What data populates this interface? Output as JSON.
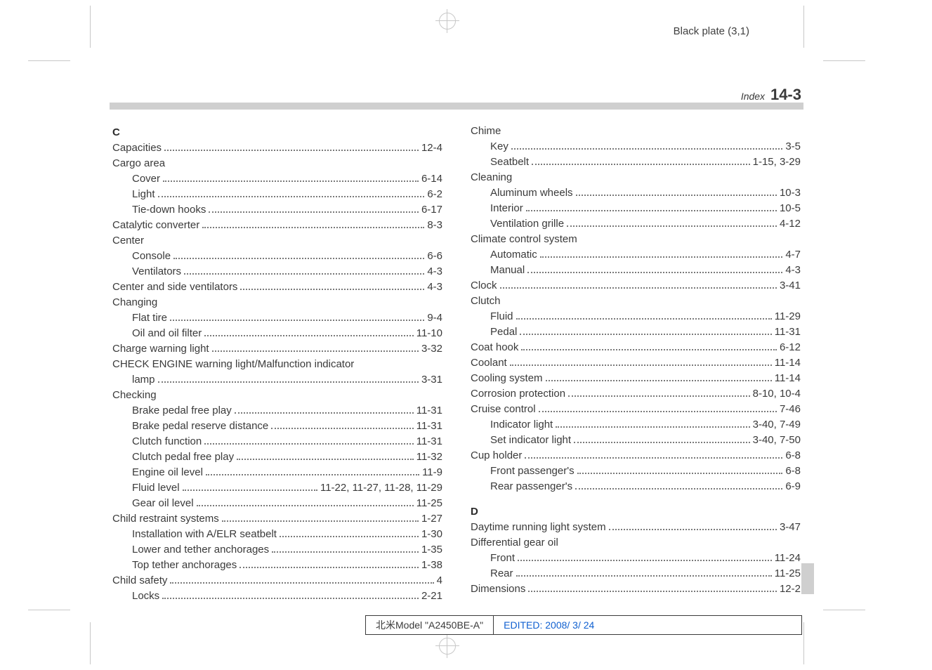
{
  "header": {
    "black_plate": "Black plate (3,1)",
    "index_word": "Index",
    "index_number": "14-3"
  },
  "footer": {
    "model": "北米Model \"A2450BE-A\"",
    "edited": "EDITED: 2008/ 3/ 24"
  },
  "left": [
    {
      "type": "head",
      "text": "C"
    },
    {
      "type": "entry",
      "indent": 0,
      "label": "Capacities",
      "page": "12-4"
    },
    {
      "type": "group",
      "indent": 0,
      "label": "Cargo area"
    },
    {
      "type": "entry",
      "indent": 1,
      "label": "Cover",
      "page": "6-14"
    },
    {
      "type": "entry",
      "indent": 1,
      "label": "Light",
      "page": "6-2"
    },
    {
      "type": "entry",
      "indent": 1,
      "label": "Tie-down hooks",
      "page": "6-17"
    },
    {
      "type": "entry",
      "indent": 0,
      "label": "Catalytic converter",
      "page": "8-3"
    },
    {
      "type": "group",
      "indent": 0,
      "label": "Center"
    },
    {
      "type": "entry",
      "indent": 1,
      "label": "Console",
      "page": "6-6"
    },
    {
      "type": "entry",
      "indent": 1,
      "label": "Ventilators",
      "page": "4-3"
    },
    {
      "type": "entry",
      "indent": 0,
      "label": "Center and side ventilators",
      "page": "4-3"
    },
    {
      "type": "group",
      "indent": 0,
      "label": "Changing"
    },
    {
      "type": "entry",
      "indent": 1,
      "label": "Flat tire",
      "page": "9-4"
    },
    {
      "type": "entry",
      "indent": 1,
      "label": "Oil and oil filter",
      "page": "11-10"
    },
    {
      "type": "entry",
      "indent": 0,
      "label": "Charge warning light",
      "page": "3-32"
    },
    {
      "type": "group",
      "indent": 0,
      "label": "CHECK ENGINE warning light/Malfunction indicator"
    },
    {
      "type": "entry",
      "indent": 1,
      "label": "lamp",
      "page": "3-31"
    },
    {
      "type": "group",
      "indent": 0,
      "label": "Checking"
    },
    {
      "type": "entry",
      "indent": 1,
      "label": "Brake pedal free play",
      "page": "11-31"
    },
    {
      "type": "entry",
      "indent": 1,
      "label": "Brake pedal reserve distance",
      "page": "11-31"
    },
    {
      "type": "entry",
      "indent": 1,
      "label": "Clutch function",
      "page": "11-31"
    },
    {
      "type": "entry",
      "indent": 1,
      "label": "Clutch pedal free play",
      "page": "11-32"
    },
    {
      "type": "entry",
      "indent": 1,
      "label": "Engine oil level",
      "page": "11-9"
    },
    {
      "type": "entry",
      "indent": 1,
      "label": "Fluid level",
      "page": "11-22, 11-27, 11-28, 11-29"
    },
    {
      "type": "entry",
      "indent": 1,
      "label": "Gear oil level",
      "page": "11-25"
    },
    {
      "type": "entry",
      "indent": 0,
      "label": "Child restraint systems",
      "page": "1-27"
    },
    {
      "type": "entry",
      "indent": 1,
      "label": "Installation with A/ELR seatbelt",
      "page": "1-30"
    },
    {
      "type": "entry",
      "indent": 1,
      "label": "Lower and tether anchorages",
      "page": "1-35"
    },
    {
      "type": "entry",
      "indent": 1,
      "label": "Top tether anchorages",
      "page": "1-38"
    },
    {
      "type": "entry",
      "indent": 0,
      "label": "Child safety",
      "page": "4"
    },
    {
      "type": "entry",
      "indent": 1,
      "label": "Locks",
      "page": "2-21"
    }
  ],
  "right": [
    {
      "type": "group",
      "indent": 0,
      "label": "Chime"
    },
    {
      "type": "entry",
      "indent": 1,
      "label": "Key",
      "page": "3-5"
    },
    {
      "type": "entry",
      "indent": 1,
      "label": "Seatbelt",
      "page": "1-15, 3-29"
    },
    {
      "type": "group",
      "indent": 0,
      "label": "Cleaning"
    },
    {
      "type": "entry",
      "indent": 1,
      "label": "Aluminum wheels",
      "page": "10-3"
    },
    {
      "type": "entry",
      "indent": 1,
      "label": "Interior",
      "page": "10-5"
    },
    {
      "type": "entry",
      "indent": 1,
      "label": "Ventilation grille",
      "page": "4-12"
    },
    {
      "type": "group",
      "indent": 0,
      "label": "Climate control system"
    },
    {
      "type": "entry",
      "indent": 1,
      "label": "Automatic",
      "page": "4-7"
    },
    {
      "type": "entry",
      "indent": 1,
      "label": "Manual",
      "page": "4-3"
    },
    {
      "type": "entry",
      "indent": 0,
      "label": "Clock",
      "page": "3-41"
    },
    {
      "type": "group",
      "indent": 0,
      "label": "Clutch"
    },
    {
      "type": "entry",
      "indent": 1,
      "label": "Fluid",
      "page": "11-29"
    },
    {
      "type": "entry",
      "indent": 1,
      "label": "Pedal",
      "page": "11-31"
    },
    {
      "type": "entry",
      "indent": 0,
      "label": "Coat hook",
      "page": "6-12"
    },
    {
      "type": "entry",
      "indent": 0,
      "label": "Coolant",
      "page": "11-14"
    },
    {
      "type": "entry",
      "indent": 0,
      "label": "Cooling system",
      "page": "11-14"
    },
    {
      "type": "entry",
      "indent": 0,
      "label": "Corrosion protection",
      "page": "8-10, 10-4"
    },
    {
      "type": "entry",
      "indent": 0,
      "label": "Cruise control",
      "page": "7-46"
    },
    {
      "type": "entry",
      "indent": 1,
      "label": "Indicator light",
      "page": "3-40, 7-49"
    },
    {
      "type": "entry",
      "indent": 1,
      "label": "Set indicator light",
      "page": "3-40, 7-50"
    },
    {
      "type": "entry",
      "indent": 0,
      "label": "Cup holder",
      "page": "6-8"
    },
    {
      "type": "entry",
      "indent": 1,
      "label": "Front passenger's",
      "page": "6-8"
    },
    {
      "type": "entry",
      "indent": 1,
      "label": "Rear passenger's",
      "page": "6-9"
    },
    {
      "type": "spacer"
    },
    {
      "type": "head",
      "text": "D"
    },
    {
      "type": "entry",
      "indent": 0,
      "label": "Daytime running light system",
      "page": "3-47"
    },
    {
      "type": "group",
      "indent": 0,
      "label": "Differential gear oil"
    },
    {
      "type": "entry",
      "indent": 1,
      "label": "Front",
      "page": "11-24"
    },
    {
      "type": "entry",
      "indent": 1,
      "label": "Rear",
      "page": "11-25"
    },
    {
      "type": "entry",
      "indent": 0,
      "label": "Dimensions",
      "page": "12-2"
    }
  ]
}
